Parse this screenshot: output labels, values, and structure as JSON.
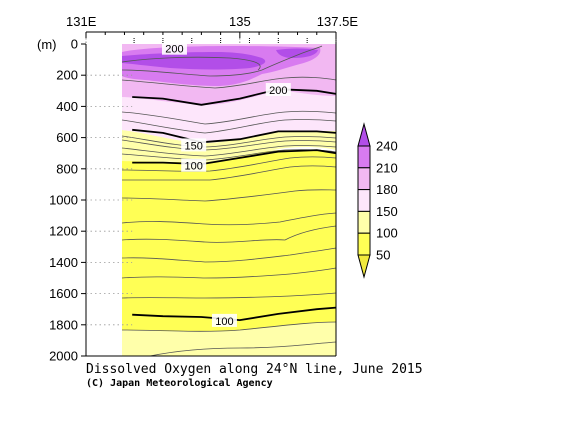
{
  "chart_data": {
    "type": "heatmap",
    "title": "Dissolved Oxygen along 24°N line, June 2015",
    "credit": "(C) Japan Meteorological Agency",
    "y_unit_label": "(m)",
    "x_tick_labels": [
      "131E",
      "135",
      "137.5E"
    ],
    "x_ticks": [
      131,
      135,
      137.5
    ],
    "xlim": [
      131,
      137.5
    ],
    "data_xlim": [
      132.2,
      137.5
    ],
    "ylim": [
      0,
      2000
    ],
    "y_axis_inverted": true,
    "y_ticks": [
      0,
      200,
      400,
      600,
      800,
      1000,
      1200,
      1400,
      1600,
      1800,
      2000
    ],
    "y_tick_labels": [
      "0",
      "200",
      "400",
      "600",
      "800",
      "1000",
      "1200",
      "1400",
      "1600",
      "1800",
      "2000"
    ],
    "grid": "dotted y gridlines left of data",
    "colorbar": {
      "levels": [
        50,
        100,
        150,
        180,
        210,
        240
      ],
      "labels": [
        "50",
        "100",
        "150",
        "180",
        "210",
        "240"
      ],
      "colors": {
        "below_50": "#f2ea3c",
        "50_100": "#ffff55",
        "100_150": "#ffffaa",
        "150_180": "#fde6fb",
        "180_210": "#f2b8f2",
        "210_240": "#d87bf0",
        "above_240": "#b24ee8"
      }
    },
    "contour_labels": [
      {
        "value": "200",
        "x": 133.3,
        "depth": 30
      },
      {
        "value": "200",
        "x": 136.0,
        "depth": 295
      },
      {
        "value": "150",
        "x": 133.8,
        "depth": 650
      },
      {
        "value": "100",
        "x": 133.8,
        "depth": 780
      },
      {
        "value": "100",
        "x": 134.6,
        "depth": 1775
      }
    ],
    "major_contours": [
      {
        "value": 200,
        "x": [
          132.2,
          133.0,
          134.0,
          135.0,
          136.0,
          137.0,
          137.5
        ],
        "depth": [
          340,
          350,
          390,
          350,
          290,
          300,
          320
        ]
      },
      {
        "value": 150,
        "x": [
          132.2,
          133.0,
          134.0,
          135.0,
          136.0,
          137.0,
          137.5
        ],
        "depth": [
          550,
          570,
          630,
          610,
          560,
          560,
          570
        ]
      },
      {
        "value": 100,
        "x": [
          132.2,
          133.0,
          134.0,
          135.0,
          136.0,
          137.0,
          137.5
        ],
        "depth": [
          760,
          760,
          770,
          730,
          690,
          680,
          700
        ]
      },
      {
        "value": 100,
        "x": [
          132.2,
          133.0,
          134.0,
          135.0,
          136.0,
          137.0,
          137.5
        ],
        "depth": [
          1735,
          1745,
          1750,
          1770,
          1730,
          1700,
          1690
        ]
      }
    ]
  }
}
